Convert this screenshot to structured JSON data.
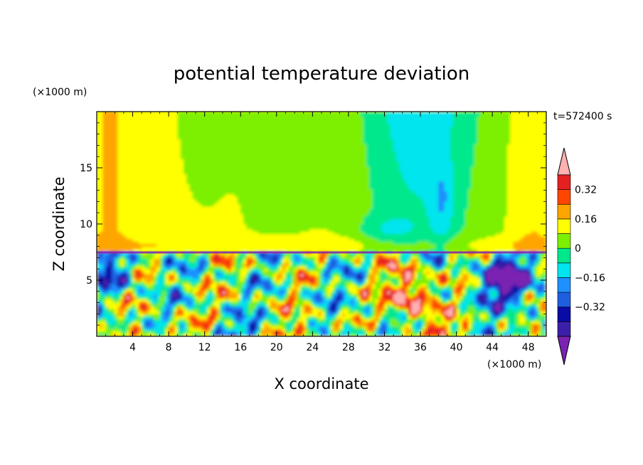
{
  "chart_data": {
    "type": "heatmap",
    "title": "potential temperature deviation",
    "xlabel": "X coordinate",
    "ylabel": "Z coordinate",
    "x_unit": "(×1000 m)",
    "y_unit": "(×1000 m)",
    "time_label": "t=572400 s",
    "xlim": [
      0,
      50
    ],
    "ylim": [
      0,
      20
    ],
    "xticks": [
      4,
      8,
      12,
      16,
      20,
      24,
      28,
      32,
      36,
      40,
      44,
      48
    ],
    "yticks": [
      5,
      10,
      15
    ],
    "colorbar": {
      "levels": [
        -0.48,
        -0.4,
        -0.32,
        -0.24,
        -0.16,
        -0.08,
        0,
        0.08,
        0.16,
        0.24,
        0.32,
        0.4
      ],
      "colors": [
        "#7b22b3",
        "#3b1fa8",
        "#0a0aa6",
        "#1e5fe0",
        "#1e90ff",
        "#00e5ee",
        "#00e88c",
        "#7cf000",
        "#ffff00",
        "#ffa500",
        "#ff4500",
        "#e52020",
        "#ffb0b0"
      ],
      "labels": [
        "0.32",
        "0.16",
        "0",
        "−0.16",
        "−0.32"
      ],
      "extend": "both"
    },
    "background_levels": {
      "upper_layer": 0.1,
      "upper_center": -0.1,
      "boundary_height": 7.5
    }
  }
}
